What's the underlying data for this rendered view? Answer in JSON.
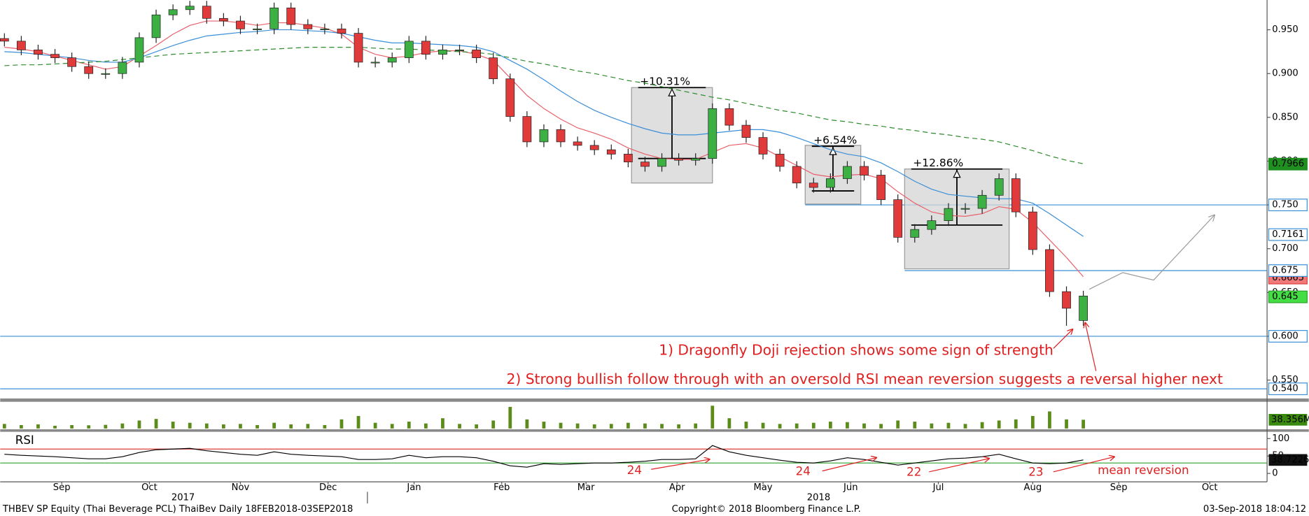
{
  "chart_data": [
    {
      "type": "candlestick",
      "categories": [
        null,
        null,
        null,
        null,
        null,
        null,
        null,
        null,
        null,
        null,
        null,
        null,
        null,
        null,
        null,
        null,
        null,
        null,
        null,
        null,
        null,
        null,
        null,
        null,
        null,
        null,
        null,
        null,
        null,
        null,
        null,
        null,
        null,
        null,
        null,
        null,
        null,
        null,
        null,
        null,
        null,
        null,
        null,
        null,
        null,
        null,
        null,
        null,
        null,
        null,
        null,
        null,
        null,
        null,
        null,
        null,
        null,
        null,
        null,
        null,
        null,
        null,
        null,
        null,
        null
      ],
      "xlim": [
        -0.25,
        74.9
      ],
      "xticks": [
        {
          "value": 3.4,
          "label": "Sep"
        },
        {
          "value": 8.6,
          "label": "Oct"
        },
        {
          "value": 14.0,
          "label": "Nov"
        },
        {
          "value": 19.2,
          "label": "Dec"
        },
        {
          "value": 24.3,
          "label": "Jan"
        },
        {
          "value": 29.5,
          "label": "Feb"
        },
        {
          "value": 34.5,
          "label": "Mar"
        },
        {
          "value": 39.9,
          "label": "Apr"
        },
        {
          "value": 45.0,
          "label": "May"
        },
        {
          "value": 50.2,
          "label": "Jun"
        },
        {
          "value": 55.4,
          "label": "Jul"
        },
        {
          "value": 61.0,
          "label": "Aug"
        },
        {
          "value": 66.1,
          "label": "Sep"
        },
        {
          "value": 71.5,
          "label": "Oct"
        }
      ],
      "year_ticks": [
        {
          "value": 10.6,
          "label": "2017"
        },
        {
          "value": 48.3,
          "label": "2018"
        }
      ],
      "ylim": [
        0.529,
        0.984
      ],
      "yticks": [
        {
          "value": 0.55,
          "label": "0.550"
        },
        {
          "value": 0.6,
          "label": "0.600"
        },
        {
          "value": 0.65,
          "label": "0.650"
        },
        {
          "value": 0.7,
          "label": "0.700"
        },
        {
          "value": 0.75,
          "label": "0.750"
        },
        {
          "value": 0.8,
          "label": "0.800"
        },
        {
          "value": 0.85,
          "label": "0.850"
        },
        {
          "value": 0.9,
          "label": "0.900"
        },
        {
          "value": 0.95,
          "label": "0.950"
        }
      ],
      "up_color": "#3cb043",
      "down_color": "#e03a3a",
      "open": [
        0.94,
        0.937,
        0.927,
        0.922,
        0.918,
        0.908,
        0.9,
        0.9,
        0.913,
        0.941,
        0.967,
        0.973,
        0.977,
        0.963,
        0.96,
        0.951,
        0.951,
        0.975,
        0.956,
        0.951,
        0.951,
        0.946,
        0.913,
        0.913,
        0.918,
        0.937,
        0.922,
        0.927,
        0.927,
        0.918,
        0.894,
        0.851,
        0.822,
        0.836,
        0.822,
        0.818,
        0.813,
        0.808,
        0.799,
        0.794,
        0.803,
        0.801,
        0.803,
        0.86,
        0.841,
        0.827,
        0.808,
        0.794,
        0.775,
        0.77,
        0.78,
        0.794,
        0.784,
        0.756,
        0.713,
        0.722,
        0.732,
        0.746,
        0.746,
        0.761,
        0.78,
        0.742,
        0.699,
        0.651,
        0.618
      ],
      "high": [
        0.946,
        0.943,
        0.933,
        0.928,
        0.924,
        0.914,
        0.906,
        0.919,
        0.947,
        0.973,
        0.979,
        0.983,
        0.983,
        0.969,
        0.966,
        0.957,
        0.981,
        0.981,
        0.962,
        0.957,
        0.957,
        0.952,
        0.919,
        0.924,
        0.943,
        0.943,
        0.933,
        0.933,
        0.933,
        0.924,
        0.9,
        0.857,
        0.842,
        0.842,
        0.828,
        0.824,
        0.819,
        0.814,
        0.805,
        0.809,
        0.809,
        0.809,
        0.866,
        0.866,
        0.847,
        0.833,
        0.814,
        0.8,
        0.781,
        0.786,
        0.8,
        0.8,
        0.79,
        0.762,
        0.728,
        0.738,
        0.752,
        0.752,
        0.767,
        0.786,
        0.786,
        0.748,
        0.705,
        0.657,
        0.652
      ],
      "low": [
        0.931,
        0.921,
        0.916,
        0.912,
        0.902,
        0.894,
        0.894,
        0.894,
        0.907,
        0.935,
        0.961,
        0.967,
        0.957,
        0.954,
        0.945,
        0.945,
        0.945,
        0.95,
        0.945,
        0.945,
        0.94,
        0.907,
        0.907,
        0.907,
        0.912,
        0.916,
        0.916,
        0.921,
        0.912,
        0.888,
        0.845,
        0.816,
        0.816,
        0.816,
        0.812,
        0.807,
        0.802,
        0.793,
        0.788,
        0.788,
        0.795,
        0.795,
        0.797,
        0.835,
        0.821,
        0.802,
        0.788,
        0.769,
        0.764,
        0.764,
        0.774,
        0.778,
        0.75,
        0.707,
        0.707,
        0.716,
        0.726,
        0.74,
        0.74,
        0.755,
        0.736,
        0.693,
        0.645,
        0.612,
        0.612
      ],
      "close": [
        0.937,
        0.927,
        0.922,
        0.918,
        0.908,
        0.9,
        0.9,
        0.913,
        0.941,
        0.967,
        0.973,
        0.977,
        0.963,
        0.96,
        0.951,
        0.951,
        0.975,
        0.956,
        0.951,
        0.951,
        0.946,
        0.913,
        0.913,
        0.918,
        0.937,
        0.922,
        0.927,
        0.927,
        0.918,
        0.894,
        0.851,
        0.822,
        0.836,
        0.822,
        0.818,
        0.813,
        0.808,
        0.799,
        0.794,
        0.803,
        0.801,
        0.803,
        0.86,
        0.841,
        0.827,
        0.808,
        0.794,
        0.775,
        0.77,
        0.78,
        0.794,
        0.784,
        0.756,
        0.713,
        0.722,
        0.732,
        0.746,
        0.746,
        0.761,
        0.78,
        0.742,
        0.699,
        0.651,
        0.632,
        0.646
      ],
      "lines": [
        {
          "color": "#e8606a",
          "dashed": false,
          "values": [
            0.93,
            0.928,
            0.925,
            0.92,
            0.915,
            0.91,
            0.905,
            0.908,
            0.92,
            0.932,
            0.945,
            0.955,
            0.96,
            0.96,
            0.958,
            0.955,
            0.958,
            0.958,
            0.955,
            0.952,
            0.945,
            0.93,
            0.922,
            0.918,
            0.92,
            0.924,
            0.926,
            0.926,
            0.922,
            0.915,
            0.895,
            0.875,
            0.86,
            0.848,
            0.838,
            0.832,
            0.825,
            0.815,
            0.808,
            0.803,
            0.802,
            0.802,
            0.81,
            0.818,
            0.82,
            0.815,
            0.805,
            0.795,
            0.785,
            0.782,
            0.784,
            0.785,
            0.78,
            0.765,
            0.752,
            0.742,
            0.738,
            0.737,
            0.74,
            0.748,
            0.745,
            0.73,
            0.71,
            0.69,
            0.668
          ]
        },
        {
          "color": "#3a8fd8",
          "dashed": false,
          "values": [
            0.925,
            0.924,
            0.922,
            0.92,
            0.918,
            0.915,
            0.913,
            0.913,
            0.918,
            0.925,
            0.932,
            0.938,
            0.943,
            0.945,
            0.947,
            0.948,
            0.95,
            0.95,
            0.949,
            0.948,
            0.946,
            0.942,
            0.938,
            0.935,
            0.935,
            0.934,
            0.933,
            0.932,
            0.93,
            0.925,
            0.915,
            0.905,
            0.893,
            0.88,
            0.868,
            0.858,
            0.85,
            0.843,
            0.837,
            0.832,
            0.83,
            0.83,
            0.832,
            0.834,
            0.836,
            0.836,
            0.833,
            0.827,
            0.82,
            0.813,
            0.808,
            0.805,
            0.798,
            0.788,
            0.777,
            0.768,
            0.762,
            0.76,
            0.758,
            0.757,
            0.757,
            0.752,
            0.74,
            0.727,
            0.714
          ]
        },
        {
          "color": "#2e8b2e",
          "dashed": true,
          "values": [
            0.909,
            0.91,
            0.91,
            0.911,
            0.912,
            0.913,
            0.914,
            0.916,
            0.918,
            0.92,
            0.922,
            0.923,
            0.924,
            0.925,
            0.926,
            0.927,
            0.928,
            0.929,
            0.93,
            0.93,
            0.93,
            0.93,
            0.929,
            0.928,
            0.928,
            0.927,
            0.926,
            0.925,
            0.924,
            0.922,
            0.918,
            0.914,
            0.911,
            0.907,
            0.903,
            0.9,
            0.896,
            0.892,
            0.889,
            0.885,
            0.881,
            0.877,
            0.873,
            0.87,
            0.866,
            0.862,
            0.858,
            0.855,
            0.851,
            0.847,
            0.845,
            0.842,
            0.84,
            0.837,
            0.835,
            0.832,
            0.83,
            0.827,
            0.825,
            0.822,
            0.817,
            0.812,
            0.806,
            0.801,
            0.797
          ]
        }
      ],
      "level_color": "#3a8fd8",
      "levels": [
        {
          "value": 0.75,
          "from": 47.5
        },
        {
          "value": 0.675,
          "from": 53.4
        },
        {
          "value": 0.6,
          "from": -0.25
        },
        {
          "value": 0.54,
          "from": -0.25
        }
      ],
      "price_labels": [
        {
          "value": 0.7966,
          "bg": "#1f8f1f",
          "fg": "#ffffff",
          "border": "#1f8f1f"
        },
        {
          "value": 0.75,
          "label": "0.750",
          "bg": "#ffffff",
          "fg": "#000000",
          "border": "#3a8fd8"
        },
        {
          "value": 0.7161,
          "bg": "#ffffff",
          "fg": "#000000",
          "border": "#3a8fd8"
        },
        {
          "value": 0.6665,
          "bg": "#f07a7a",
          "fg": "#000000",
          "border": "#e03a3a"
        },
        {
          "value": 0.675,
          "label": "0.675",
          "bg": "#ffffff",
          "fg": "#000000",
          "border": "#3a8fd8"
        },
        {
          "value": 0.645,
          "bg": "#44dd44",
          "fg": "#000000",
          "border": "#2ca02c"
        },
        {
          "value": 0.6,
          "label": "0.600",
          "bg": "#ffffff",
          "fg": "#000000",
          "border": "#3a8fd8"
        },
        {
          "value": 0.54,
          "label": "0.540",
          "bg": "#ffffff",
          "fg": "#000000",
          "border": "#3a8fd8"
        }
      ],
      "boxes": [
        {
          "label": "+10.31%",
          "x": [
            37.2,
            42.0
          ],
          "y": [
            0.775,
            0.884
          ],
          "start": 0.803,
          "end": 0.884
        },
        {
          "label": "+6.54%",
          "x": [
            47.5,
            50.8
          ],
          "y": [
            0.751,
            0.818
          ],
          "start": 0.766,
          "end": 0.817
        },
        {
          "label": "+12.86%",
          "x": [
            53.4,
            59.6
          ],
          "y": [
            0.677,
            0.791
          ],
          "start": 0.727,
          "end": 0.791
        }
      ],
      "annotations": [
        "1) Dragonfly Doji rejection shows some sign of strength",
        "2) Strong bullish follow through with an oversold RSI mean reversion suggests a reversal higher next"
      ]
    },
    {
      "type": "bar",
      "values": [
        20,
        15,
        18,
        12,
        15,
        14,
        16,
        22,
        35,
        42,
        30,
        25,
        22,
        18,
        20,
        15,
        25,
        18,
        20,
        15,
        40,
        55,
        25,
        20,
        30,
        22,
        45,
        20,
        18,
        35,
        95,
        40,
        30,
        25,
        22,
        18,
        20,
        25,
        22,
        20,
        18,
        22,
        100,
        45,
        30,
        25,
        20,
        22,
        25,
        30,
        28,
        22,
        20,
        35,
        30,
        22,
        25,
        20,
        28,
        35,
        40,
        55,
        75,
        40,
        38.356
      ],
      "ylim": [
        0,
        110
      ],
      "color": "#5b8c1a",
      "last_label": {
        "value": 38.356,
        "label": "38.356M"
      }
    },
    {
      "type": "line",
      "title": "RSI",
      "values": [
        55,
        52,
        50,
        48,
        45,
        42,
        42,
        48,
        60,
        68,
        70,
        72,
        65,
        60,
        55,
        52,
        62,
        55,
        52,
        50,
        48,
        40,
        40,
        42,
        52,
        45,
        48,
        48,
        45,
        35,
        22,
        18,
        28,
        26,
        28,
        30,
        30,
        32,
        35,
        40,
        40,
        42,
        80,
        62,
        52,
        45,
        38,
        32,
        30,
        36,
        45,
        40,
        32,
        24,
        30,
        36,
        42,
        44,
        48,
        55,
        42,
        30,
        28,
        30,
        38.7226
      ],
      "ylim": [
        -24,
        117
      ],
      "yticks": [
        0,
        50,
        100
      ],
      "color": "#000000",
      "levels": [
        {
          "value": 70,
          "color": "#e03a3a"
        },
        {
          "value": 30,
          "color": "#2ca02c"
        }
      ],
      "last_label": 38.7226,
      "annotations": [
        "24",
        "24",
        "22",
        "23",
        "mean reversion"
      ]
    }
  ],
  "footer": {
    "left": "THBEV SP Equity (Thai Beverage PCL) ThaiBev  Daily 18FEB2018-03SEP2018",
    "center": "Copyright© 2018 Bloomberg Finance L.P.",
    "right": "03-Sep-2018 18:04:12"
  }
}
